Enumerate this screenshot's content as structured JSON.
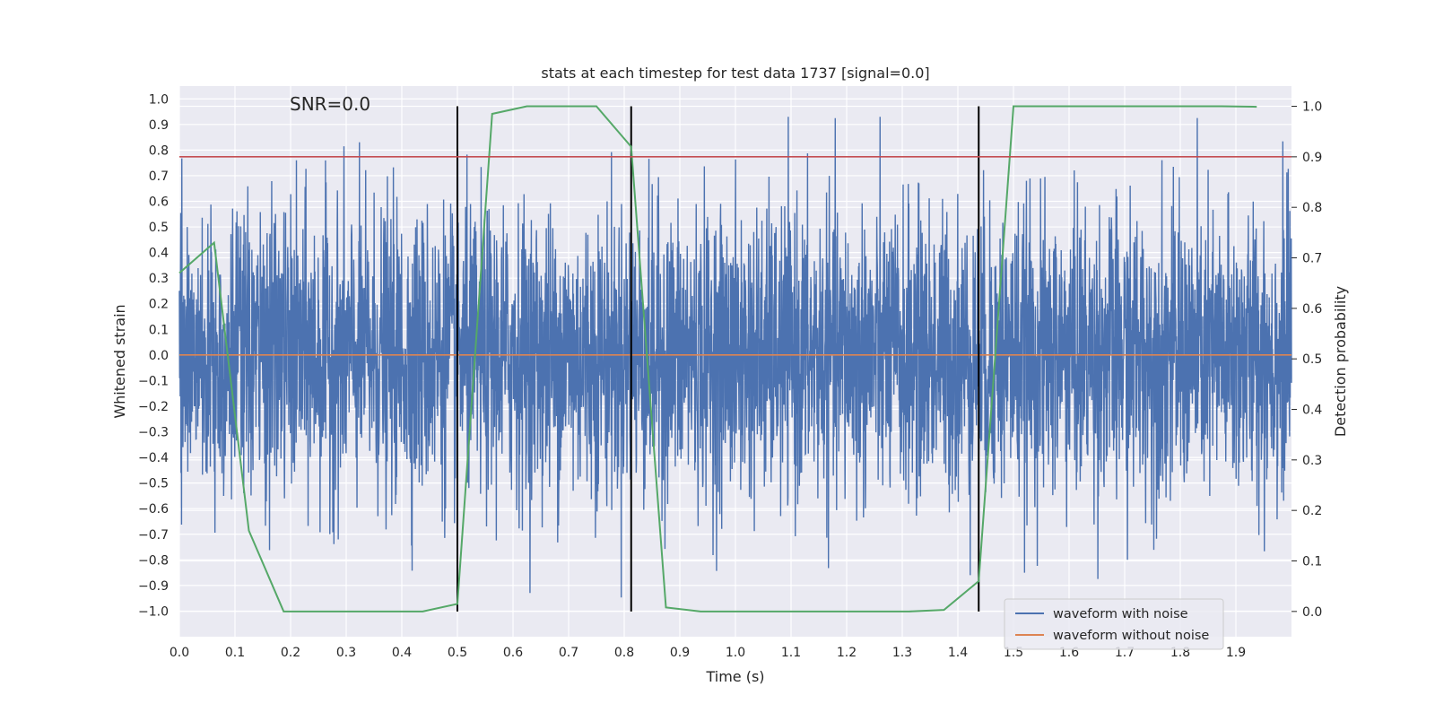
{
  "chart_data": {
    "type": "line",
    "title": "stats at each timestep for test data 1737 [signal=0.0]",
    "annotation": "SNR=0.0",
    "xlabel": "Time (s)",
    "ylabel": "Whitened strain",
    "y2label": "Detection probability",
    "xlim": [
      0.0,
      2.0
    ],
    "ylim": [
      -1.1,
      1.05
    ],
    "y2lim": [
      -0.05,
      1.04
    ],
    "xticks": [
      "0.0",
      "0.1",
      "0.2",
      "0.3",
      "0.4",
      "0.5",
      "0.6",
      "0.7",
      "0.8",
      "0.9",
      "1.0",
      "1.1",
      "1.2",
      "1.3",
      "1.4",
      "1.5",
      "1.6",
      "1.7",
      "1.8",
      "1.9"
    ],
    "yticks": [
      "1.0",
      "0.9",
      "0.8",
      "0.7",
      "0.6",
      "0.5",
      "0.4",
      "0.3",
      "0.2",
      "0.1",
      "0.0",
      "−0.1",
      "−0.2",
      "−0.3",
      "−0.4",
      "−0.5",
      "−0.6",
      "−0.7",
      "−0.8",
      "−0.9",
      "−1.0"
    ],
    "y2ticks": [
      "1.0",
      "0.9",
      "0.8",
      "0.7",
      "0.6",
      "0.5",
      "0.4",
      "0.3",
      "0.2",
      "0.1",
      "0.0"
    ],
    "grid": true,
    "legend_position": "lower-right",
    "series": [
      {
        "name": "waveform with noise",
        "color": "#4c72b0",
        "axis": "left",
        "kind": "noise",
        "n_points": 4096,
        "amplitude_range": [
          -1.0,
          0.93
        ]
      },
      {
        "name": "waveform without noise",
        "color": "#dd8452",
        "axis": "left",
        "x": [
          0.0,
          2.0
        ],
        "y": [
          0.0,
          0.0
        ]
      },
      {
        "color": "#55a868",
        "axis": "right",
        "x": [
          0.0,
          0.0625,
          0.125,
          0.1875,
          0.25,
          0.3125,
          0.375,
          0.4375,
          0.5,
          0.5625,
          0.625,
          0.6875,
          0.75,
          0.8125,
          0.875,
          0.9375,
          1.0,
          1.0625,
          1.125,
          1.1875,
          1.25,
          1.3125,
          1.375,
          1.4375,
          1.5,
          1.5625,
          1.625,
          1.6875,
          1.75,
          1.8125,
          1.875,
          1.9375
        ],
        "y": [
          0.67,
          0.73,
          0.16,
          0.0,
          0.0,
          0.0,
          0.0,
          0.0,
          0.015,
          0.985,
          1.0,
          1.0,
          1.0,
          0.92,
          0.008,
          0.0,
          0.0,
          0.0,
          0.0,
          0.0,
          0.0,
          0.0,
          0.003,
          0.06,
          1.0,
          1.0,
          1.0,
          1.0,
          1.0,
          1.0,
          1.0,
          0.999
        ]
      }
    ],
    "threshold": {
      "axis": "right",
      "value": 0.9,
      "color": "#c44e52"
    },
    "vlines": {
      "x": [
        0.5,
        0.8125,
        1.4375
      ],
      "color": "#000000"
    }
  }
}
